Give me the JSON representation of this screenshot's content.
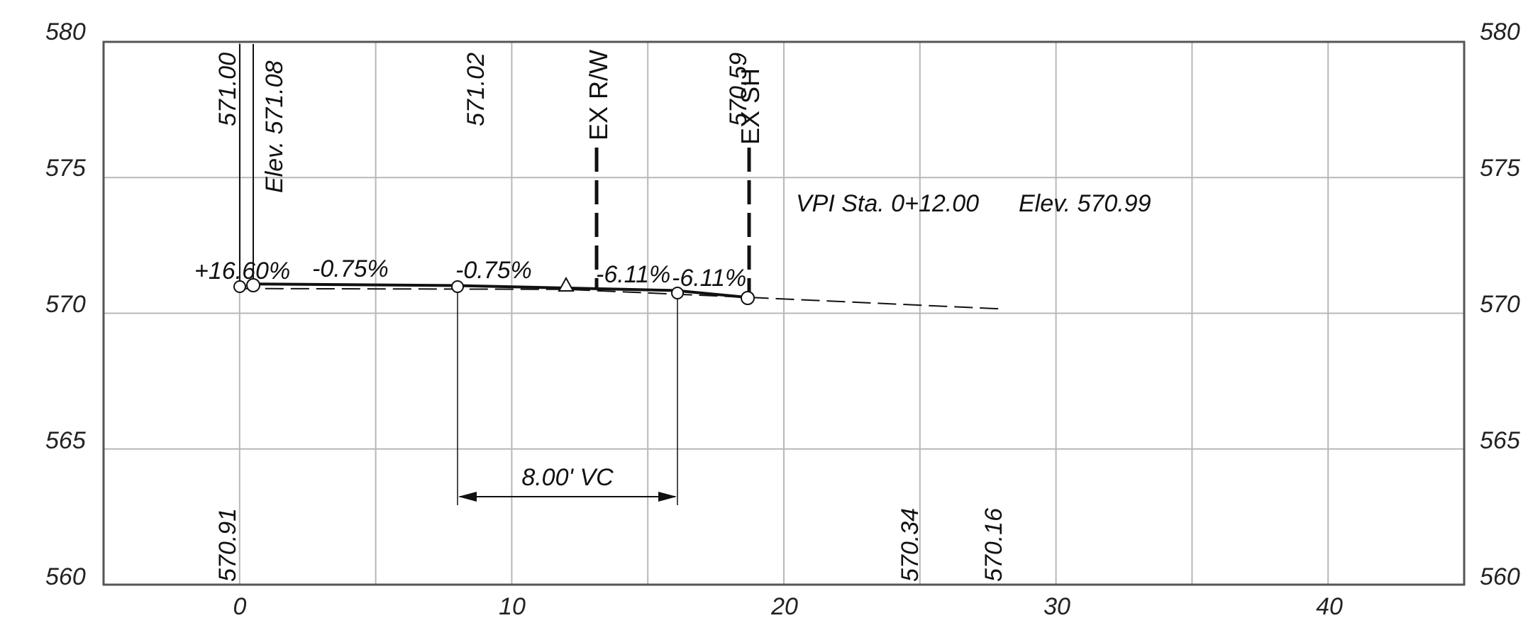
{
  "chart_data": {
    "type": "line",
    "xlim": [
      -5,
      45
    ],
    "ylim": [
      560,
      580
    ],
    "x_ticks": [
      "0",
      "10",
      "20",
      "30",
      "40"
    ],
    "y_ticks": [
      "580",
      "575",
      "570",
      "565",
      "560"
    ],
    "grid": true,
    "series": [
      {
        "style": "solid-thick",
        "points": [
          [
            0.5,
            571.08
          ],
          [
            8.0,
            571.02
          ],
          [
            16.0,
            570.84
          ],
          [
            18.6,
            570.59
          ]
        ]
      },
      {
        "style": "dashed",
        "points": [
          [
            0,
            570.91
          ],
          [
            12,
            570.88
          ],
          [
            18.6,
            570.59
          ],
          [
            28,
            570.16
          ]
        ]
      }
    ],
    "grade_labels": [
      "+16.60%",
      "-0.75%",
      "-0.75%",
      "-6.11%",
      "-6.11%"
    ],
    "top_elevations": [
      "571.00",
      "Elev. 571.08",
      "571.02",
      "570.59"
    ],
    "bottom_elevations": [
      "570.91",
      "570.34",
      "570.16"
    ],
    "markers": [
      "EX R/W",
      "EX SH"
    ],
    "vpi_text": "VPI Sta. 0+12.00",
    "vpi_elev": "Elev. 570.99",
    "vc_text": "8.00' VC"
  }
}
